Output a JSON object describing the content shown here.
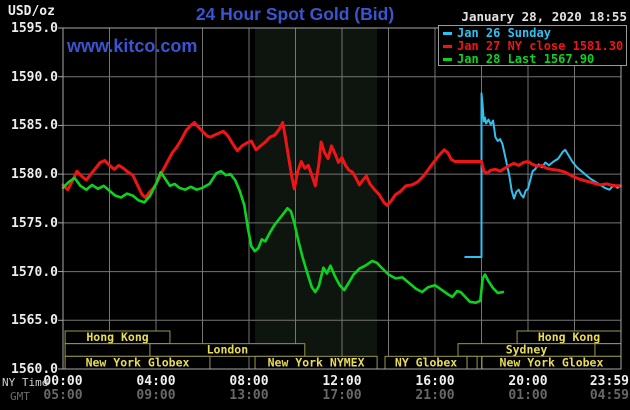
{
  "header": {
    "usd_oz": "USD/oz",
    "title": "24 Hour Spot Gold (Bid)",
    "watermark": "www.kitco.com",
    "datetime": "January 28, 2020 18:55"
  },
  "axes": {
    "ny_time_label": "NY Time",
    "gmt_label": "GMT"
  },
  "legend": [
    {
      "label": "Jan 26 Sunday",
      "color": "#2fc0f2"
    },
    {
      "label": "Jan 27 NY close 1581.30",
      "color": "#f01414"
    },
    {
      "label": "Jan 28 Last 1567.90",
      "color": "#0cd41e"
    }
  ],
  "colors": {
    "background": "#000000",
    "plot_border": "#a8a8a8",
    "gridline": "#757575",
    "nymex_band": "#0e150e",
    "session_border": "#97974b",
    "session_text": "#e8dd55",
    "title_blue": "#3b55d0",
    "cyan_series": "#2fc0f2",
    "red_series": "#f01414",
    "green_series": "#0cd41e"
  },
  "chart_data": {
    "type": "line",
    "title": "24 Hour Spot Gold (Bid)",
    "ylabel": "USD/oz",
    "ylim": [
      1560,
      1595
    ],
    "x_hours": [
      0,
      24
    ],
    "grid": true,
    "grid_x_step_hours": 2,
    "grid_y_step": 5,
    "yticks": [
      {
        "v": 1595,
        "label": "1595.0"
      },
      {
        "v": 1590,
        "label": "1590.0"
      },
      {
        "v": 1585,
        "label": "1585.0"
      },
      {
        "v": 1580,
        "label": "1580.0"
      },
      {
        "v": 1575,
        "label": "1575.0"
      },
      {
        "v": 1570,
        "label": "1570.0"
      },
      {
        "v": 1565,
        "label": "1565.0"
      },
      {
        "v": 1560,
        "label": "1560.0"
      }
    ],
    "xticks": [
      {
        "h": 0,
        "ny": "00:00",
        "gmt": "05:00"
      },
      {
        "h": 4,
        "ny": "04:00",
        "gmt": "09:00"
      },
      {
        "h": 8,
        "ny": "08:00",
        "gmt": "13:00"
      },
      {
        "h": 12,
        "ny": "12:00",
        "gmt": "17:00"
      },
      {
        "h": 16,
        "ny": "16:00",
        "gmt": "21:00"
      },
      {
        "h": 20,
        "ny": "20:00",
        "gmt": "01:00"
      },
      {
        "h": 23.983,
        "ny": "23:59",
        "gmt": "04:59"
      }
    ],
    "nymex_band_hours": [
      8.26,
      13.51
    ],
    "series": [
      {
        "name": "Jan 26 Sunday",
        "color": "#2fc0f2",
        "width": 2,
        "points": [
          [
            17.3,
            1571.5
          ],
          [
            18,
            1571.5
          ],
          [
            18,
            1588.3
          ],
          [
            18.05,
            1587
          ],
          [
            18.1,
            1585.4
          ],
          [
            18.15,
            1585.8
          ],
          [
            18.2,
            1585.2
          ],
          [
            18.3,
            1585.6
          ],
          [
            18.4,
            1585.1
          ],
          [
            18.5,
            1585.5
          ],
          [
            18.6,
            1583.8
          ],
          [
            18.7,
            1583.4
          ],
          [
            18.8,
            1583.6
          ],
          [
            18.9,
            1583.1
          ],
          [
            19,
            1582
          ],
          [
            19.1,
            1580.9
          ],
          [
            19.2,
            1579.8
          ],
          [
            19.3,
            1578.3
          ],
          [
            19.4,
            1577.5
          ],
          [
            19.5,
            1578.2
          ],
          [
            19.6,
            1578.4
          ],
          [
            19.7,
            1577.9
          ],
          [
            19.8,
            1577.6
          ],
          [
            19.9,
            1578.3
          ],
          [
            20,
            1578.5
          ],
          [
            20.1,
            1579.4
          ],
          [
            20.2,
            1580.3
          ],
          [
            20.3,
            1580.5
          ],
          [
            20.45,
            1581
          ],
          [
            20.6,
            1580.7
          ],
          [
            20.75,
            1581.2
          ],
          [
            20.9,
            1580.9
          ],
          [
            21.1,
            1581.3
          ],
          [
            21.3,
            1581.6
          ],
          [
            21.5,
            1582.3
          ],
          [
            21.6,
            1582.5
          ],
          [
            21.75,
            1581.9
          ],
          [
            21.9,
            1581.3
          ],
          [
            22.1,
            1580.7
          ],
          [
            22.3,
            1580.3
          ],
          [
            22.5,
            1579.9
          ],
          [
            22.7,
            1579.5
          ],
          [
            22.9,
            1579.2
          ],
          [
            23.1,
            1578.9
          ],
          [
            23.3,
            1578.6
          ],
          [
            23.5,
            1578.4
          ],
          [
            23.7,
            1578.9
          ],
          [
            23.85,
            1578.6
          ],
          [
            23.98,
            1578.8
          ]
        ]
      },
      {
        "name": "Jan 27 NY close 1581.30",
        "color": "#f01414",
        "width": 3,
        "points": [
          [
            0,
            1578.9
          ],
          [
            0.2,
            1578.4
          ],
          [
            0.4,
            1579.3
          ],
          [
            0.6,
            1580.3
          ],
          [
            0.8,
            1579.8
          ],
          [
            1,
            1579.4
          ],
          [
            1.2,
            1580
          ],
          [
            1.4,
            1580.6
          ],
          [
            1.6,
            1581.2
          ],
          [
            1.8,
            1581.4
          ],
          [
            2,
            1580.9
          ],
          [
            2.2,
            1580.5
          ],
          [
            2.4,
            1580.9
          ],
          [
            2.6,
            1580.6
          ],
          [
            2.8,
            1580.2
          ],
          [
            3,
            1579.9
          ],
          [
            3.2,
            1578.9
          ],
          [
            3.4,
            1577.9
          ],
          [
            3.55,
            1577.6
          ],
          [
            3.7,
            1578.1
          ],
          [
            3.9,
            1578.6
          ],
          [
            4.1,
            1579.4
          ],
          [
            4.3,
            1580.4
          ],
          [
            4.5,
            1581.3
          ],
          [
            4.7,
            1582.2
          ],
          [
            4.9,
            1582.8
          ],
          [
            5.1,
            1583.6
          ],
          [
            5.3,
            1584.5
          ],
          [
            5.5,
            1585
          ],
          [
            5.65,
            1585.3
          ],
          [
            5.8,
            1584.9
          ],
          [
            6,
            1584.4
          ],
          [
            6.2,
            1583.9
          ],
          [
            6.35,
            1583.8
          ],
          [
            6.5,
            1584
          ],
          [
            6.7,
            1584.2
          ],
          [
            6.9,
            1584.4
          ],
          [
            7.1,
            1583.9
          ],
          [
            7.3,
            1583.1
          ],
          [
            7.5,
            1582.4
          ],
          [
            7.7,
            1582.9
          ],
          [
            7.9,
            1583.2
          ],
          [
            8.1,
            1583.4
          ],
          [
            8.3,
            1582.5
          ],
          [
            8.5,
            1582.9
          ],
          [
            8.7,
            1583.3
          ],
          [
            8.9,
            1583.8
          ],
          [
            9.1,
            1584
          ],
          [
            9.3,
            1584.6
          ],
          [
            9.45,
            1585.3
          ],
          [
            9.55,
            1584
          ],
          [
            9.7,
            1581.8
          ],
          [
            9.85,
            1579.6
          ],
          [
            9.95,
            1578.5
          ],
          [
            10.1,
            1580.3
          ],
          [
            10.25,
            1581.3
          ],
          [
            10.4,
            1580.6
          ],
          [
            10.55,
            1580.9
          ],
          [
            10.7,
            1579.9
          ],
          [
            10.85,
            1578.8
          ],
          [
            11,
            1581
          ],
          [
            11.1,
            1583.3
          ],
          [
            11.25,
            1582.2
          ],
          [
            11.4,
            1581.6
          ],
          [
            11.55,
            1582.9
          ],
          [
            11.7,
            1582.1
          ],
          [
            11.85,
            1581.2
          ],
          [
            12,
            1581.7
          ],
          [
            12.15,
            1580.9
          ],
          [
            12.3,
            1580.4
          ],
          [
            12.45,
            1580.2
          ],
          [
            12.6,
            1579.6
          ],
          [
            12.75,
            1578.9
          ],
          [
            12.9,
            1579.4
          ],
          [
            13.05,
            1579.8
          ],
          [
            13.2,
            1579
          ],
          [
            13.4,
            1578.4
          ],
          [
            13.6,
            1577.9
          ],
          [
            13.8,
            1577.1
          ],
          [
            13.95,
            1576.8
          ],
          [
            14.1,
            1577.2
          ],
          [
            14.3,
            1577.9
          ],
          [
            14.5,
            1578.2
          ],
          [
            14.75,
            1578.8
          ],
          [
            15,
            1578.9
          ],
          [
            15.25,
            1579.2
          ],
          [
            15.5,
            1579.8
          ],
          [
            15.75,
            1580.6
          ],
          [
            16,
            1581.4
          ],
          [
            16.2,
            1582
          ],
          [
            16.4,
            1582.5
          ],
          [
            16.55,
            1582.2
          ],
          [
            16.7,
            1581.5
          ],
          [
            16.85,
            1581.3
          ],
          [
            18,
            1581.3
          ],
          [
            18.1,
            1580.3
          ],
          [
            18.25,
            1580.1
          ],
          [
            18.4,
            1580.4
          ],
          [
            18.6,
            1580.5
          ],
          [
            18.8,
            1580.3
          ],
          [
            19,
            1580.6
          ],
          [
            19.2,
            1580.9
          ],
          [
            19.4,
            1581.1
          ],
          [
            19.6,
            1580.9
          ],
          [
            19.8,
            1581.2
          ],
          [
            20,
            1581.3
          ],
          [
            20.2,
            1581
          ],
          [
            20.4,
            1580.8
          ],
          [
            20.6,
            1580.9
          ],
          [
            20.8,
            1580.6
          ],
          [
            21,
            1580.5
          ],
          [
            21.3,
            1580.4
          ],
          [
            21.6,
            1580.2
          ],
          [
            21.9,
            1579.8
          ],
          [
            22.2,
            1579.5
          ],
          [
            22.5,
            1579.3
          ],
          [
            22.8,
            1579.1
          ],
          [
            23.1,
            1578.9
          ],
          [
            23.4,
            1579
          ],
          [
            23.7,
            1578.8
          ],
          [
            23.98,
            1578.8
          ]
        ]
      },
      {
        "name": "Jan 28 Last 1567.90",
        "color": "#0cd41e",
        "width": 2.6,
        "points": [
          [
            0,
            1578.6
          ],
          [
            0.25,
            1579.2
          ],
          [
            0.5,
            1579.6
          ],
          [
            0.75,
            1578.8
          ],
          [
            1,
            1578.4
          ],
          [
            1.25,
            1578.9
          ],
          [
            1.5,
            1578.5
          ],
          [
            1.75,
            1578.8
          ],
          [
            2,
            1578.3
          ],
          [
            2.25,
            1577.8
          ],
          [
            2.5,
            1577.6
          ],
          [
            2.75,
            1578
          ],
          [
            3,
            1577.8
          ],
          [
            3.25,
            1577.3
          ],
          [
            3.5,
            1577.1
          ],
          [
            3.75,
            1577.8
          ],
          [
            4,
            1579
          ],
          [
            4.2,
            1580.2
          ],
          [
            4.4,
            1579.5
          ],
          [
            4.6,
            1578.8
          ],
          [
            4.8,
            1579
          ],
          [
            5,
            1578.6
          ],
          [
            5.25,
            1578.4
          ],
          [
            5.5,
            1578.7
          ],
          [
            5.75,
            1578.4
          ],
          [
            6,
            1578.6
          ],
          [
            6.3,
            1579
          ],
          [
            6.6,
            1580.1
          ],
          [
            6.8,
            1580.3
          ],
          [
            7,
            1579.9
          ],
          [
            7.2,
            1580
          ],
          [
            7.4,
            1579.4
          ],
          [
            7.6,
            1578.3
          ],
          [
            7.8,
            1576.8
          ],
          [
            7.95,
            1574.5
          ],
          [
            8.1,
            1572.6
          ],
          [
            8.25,
            1572.1
          ],
          [
            8.4,
            1572.4
          ],
          [
            8.55,
            1573.3
          ],
          [
            8.7,
            1573.1
          ],
          [
            8.9,
            1574
          ],
          [
            9.1,
            1574.8
          ],
          [
            9.3,
            1575.4
          ],
          [
            9.5,
            1576
          ],
          [
            9.65,
            1576.5
          ],
          [
            9.8,
            1576.2
          ],
          [
            9.95,
            1575
          ],
          [
            10.1,
            1573.4
          ],
          [
            10.3,
            1571.5
          ],
          [
            10.5,
            1569.9
          ],
          [
            10.7,
            1568.4
          ],
          [
            10.85,
            1567.9
          ],
          [
            11,
            1568.5
          ],
          [
            11.2,
            1570.4
          ],
          [
            11.35,
            1569.8
          ],
          [
            11.5,
            1570.6
          ],
          [
            11.7,
            1569.5
          ],
          [
            11.9,
            1568.6
          ],
          [
            12.1,
            1568.1
          ],
          [
            12.3,
            1568.9
          ],
          [
            12.5,
            1569.7
          ],
          [
            12.75,
            1570.3
          ],
          [
            13,
            1570.6
          ],
          [
            13.3,
            1571.1
          ],
          [
            13.5,
            1570.9
          ],
          [
            13.7,
            1570.4
          ],
          [
            14,
            1569.7
          ],
          [
            14.3,
            1569.3
          ],
          [
            14.6,
            1569.4
          ],
          [
            14.9,
            1568.8
          ],
          [
            15.2,
            1568.2
          ],
          [
            15.45,
            1567.9
          ],
          [
            15.7,
            1568.4
          ],
          [
            16,
            1568.6
          ],
          [
            16.3,
            1568.1
          ],
          [
            16.6,
            1567.6
          ],
          [
            16.75,
            1567.4
          ],
          [
            16.95,
            1568
          ],
          [
            17.1,
            1567.9
          ],
          [
            17.3,
            1567.4
          ],
          [
            17.5,
            1566.9
          ],
          [
            17.75,
            1566.8
          ],
          [
            17.95,
            1567
          ],
          [
            18.05,
            1569.3
          ],
          [
            18.15,
            1569.7
          ],
          [
            18.3,
            1569
          ],
          [
            18.5,
            1568.3
          ],
          [
            18.7,
            1567.8
          ],
          [
            18.92,
            1567.9
          ]
        ]
      }
    ],
    "sessions": [
      [
        {
          "label": "Hong Kong",
          "from": 0.09,
          "to": 4.6
        },
        {
          "label": "Hong Kong",
          "from": 19.53,
          "to": 24
        }
      ],
      [
        {
          "label": "",
          "from": 0.09,
          "to": 3.74
        },
        {
          "label": "London",
          "from": 3.74,
          "to": 10.4
        },
        {
          "label": "Sydney",
          "from": 16.99,
          "to": 22.88
        },
        {
          "label": "",
          "from": 22.88,
          "to": 24
        }
      ],
      [
        {
          "label": "New York Globex",
          "from": 0.09,
          "to": 6.32
        },
        {
          "label": "New York NYMEX",
          "from": 8.26,
          "to": 13.51
        },
        {
          "label": "NY Globex",
          "from": 13.85,
          "to": 17.38
        },
        {
          "label": "",
          "from": 17.38,
          "to": 17.81
        },
        {
          "label": "New York Globex",
          "from": 18.02,
          "to": 24
        }
      ]
    ]
  }
}
